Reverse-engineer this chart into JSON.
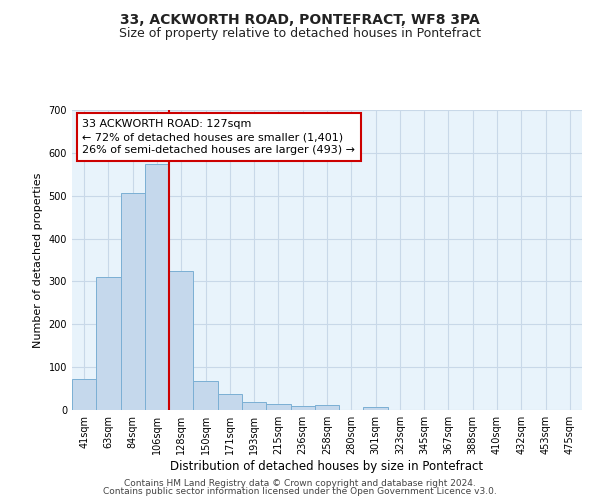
{
  "title1": "33, ACKWORTH ROAD, PONTEFRACT, WF8 3PA",
  "title2": "Size of property relative to detached houses in Pontefract",
  "xlabel": "Distribution of detached houses by size in Pontefract",
  "ylabel": "Number of detached properties",
  "bar_labels": [
    "41sqm",
    "63sqm",
    "84sqm",
    "106sqm",
    "128sqm",
    "150sqm",
    "171sqm",
    "193sqm",
    "215sqm",
    "236sqm",
    "258sqm",
    "280sqm",
    "301sqm",
    "323sqm",
    "345sqm",
    "367sqm",
    "388sqm",
    "410sqm",
    "432sqm",
    "453sqm",
    "475sqm"
  ],
  "bar_heights": [
    72,
    311,
    506,
    575,
    325,
    67,
    38,
    18,
    13,
    10,
    11,
    0,
    8,
    0,
    0,
    0,
    0,
    0,
    0,
    0,
    0
  ],
  "bar_color": "#c5d8ec",
  "bar_edge_color": "#7bafd4",
  "vline_color": "#cc0000",
  "annotation_text": "33 ACKWORTH ROAD: 127sqm\n← 72% of detached houses are smaller (1,401)\n26% of semi-detached houses are larger (493) →",
  "annotation_box_color": "#ffffff",
  "annotation_box_edge": "#cc0000",
  "ylim": [
    0,
    700
  ],
  "yticks": [
    0,
    100,
    200,
    300,
    400,
    500,
    600,
    700
  ],
  "grid_color": "#c8d8e8",
  "bg_color": "#e8f3fb",
  "footer1": "Contains HM Land Registry data © Crown copyright and database right 2024.",
  "footer2": "Contains public sector information licensed under the Open Government Licence v3.0.",
  "title1_fontsize": 10,
  "title2_fontsize": 9,
  "xlabel_fontsize": 8.5,
  "ylabel_fontsize": 8,
  "tick_fontsize": 7,
  "annotation_fontsize": 8,
  "footer_fontsize": 6.5
}
